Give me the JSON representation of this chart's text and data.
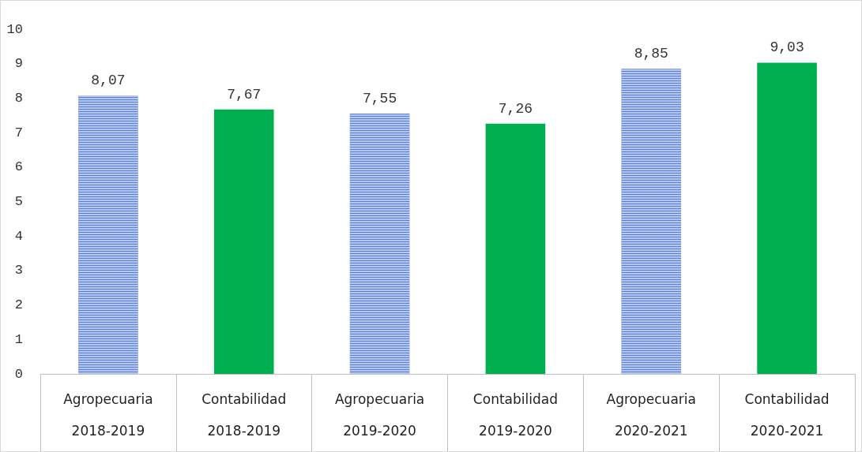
{
  "chart_data": {
    "type": "bar",
    "categories": [
      "Agropecuaria 2018-2019",
      "Contabilidad 2018-2019",
      "Agropecuaria 2019-2020",
      "Contabilidad 2019-2020",
      "Agropecuaria 2020-2021",
      "Contabilidad 2020-2021"
    ],
    "values": [
      8.07,
      7.67,
      7.55,
      7.26,
      8.85,
      9.03
    ],
    "colors": [
      "#5a80d4",
      "#00b050",
      "#5a80d4",
      "#00b050",
      "#5a80d4",
      "#00b050"
    ],
    "value_labels": [
      "8,07",
      "7,67",
      "7,55",
      "7,26",
      "8,85",
      "9,03"
    ],
    "ylim": [
      0,
      10
    ],
    "yticks": [
      0,
      1,
      2,
      3,
      4,
      5,
      6,
      7,
      8,
      9,
      10
    ],
    "grid": false
  }
}
